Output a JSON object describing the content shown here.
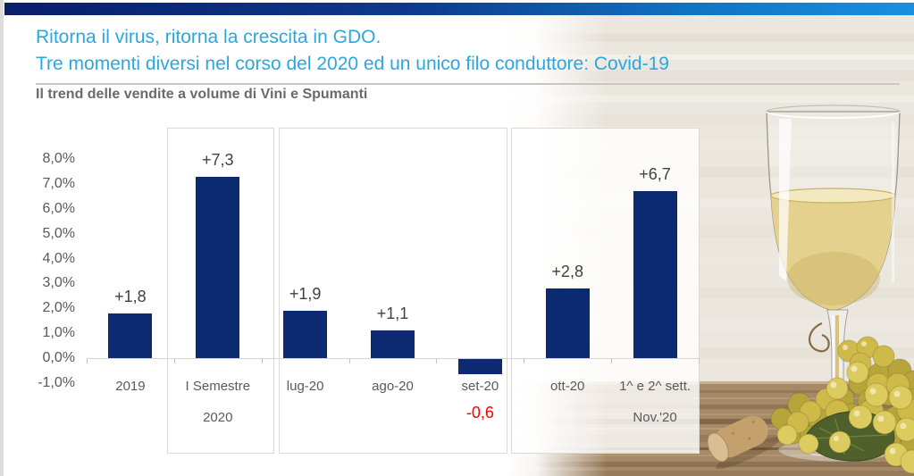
{
  "slide": {
    "title_line1": "Ritorna il virus, ritorna la crescita in GDO.",
    "title_line2": "Tre momenti diversi nel corso del 2020 ed un unico filo conduttore: Covid-19",
    "subtitle": "Il trend delle vendite a volume di Vini e Spumanti",
    "accent_colors": {
      "topbar_left": "#0a1e6b",
      "topbar_right": "#1a8fe0",
      "title_blue": "#2ba7e0",
      "subtitle_gray": "#6a6a6a"
    }
  },
  "photo": {
    "subject": "glass of white wine with grapes, vine leaf and cork on a wooden table"
  },
  "chart_data": {
    "type": "bar",
    "title": "Il trend delle vendite a volume di Vini e Spumanti",
    "categories": [
      "2019",
      "I Semestre 2020",
      "lug-20",
      "ago-20",
      "set-20",
      "ott-20",
      "1^ e 2^ sett. Nov.'20"
    ],
    "category_lines": [
      [
        "2019"
      ],
      [
        "I Semestre",
        "2020"
      ],
      [
        "lug-20"
      ],
      [
        "ago-20"
      ],
      [
        "set-20"
      ],
      [
        "ott-20"
      ],
      [
        "1^ e 2^ sett.",
        "Nov.'20"
      ]
    ],
    "values": [
      1.8,
      7.3,
      1.9,
      1.1,
      -0.6,
      2.8,
      6.7
    ],
    "data_labels": [
      "+1,8",
      "+7,3",
      "+1,9",
      "+1,1",
      "-0,6",
      "+2,8",
      "+6,7"
    ],
    "unit": "%",
    "ylim": [
      -1.0,
      8.0
    ],
    "yticks": [
      {
        "value": 8,
        "label": "8,0%"
      },
      {
        "value": 7,
        "label": "7,0%"
      },
      {
        "value": 6,
        "label": "6,0%"
      },
      {
        "value": 5,
        "label": "5,0%"
      },
      {
        "value": 4,
        "label": "4,0%"
      },
      {
        "value": 3,
        "label": "3,0%"
      },
      {
        "value": 2,
        "label": "2,0%"
      },
      {
        "value": 1,
        "label": "1,0%"
      },
      {
        "value": 0,
        "label": "0,0%"
      },
      {
        "value": -1,
        "label": "-1,0%"
      }
    ],
    "grid": false,
    "legend": false,
    "bar_color": "#0b2a72",
    "value_label_color": "#404040",
    "negative_label_color": "#ff0000",
    "axis_label_color": "#595959",
    "group_boxes": [
      {
        "categories": [
          "I Semestre 2020"
        ]
      },
      {
        "categories": [
          "lug-20",
          "ago-20",
          "set-20"
        ]
      },
      {
        "categories": [
          "ott-20",
          "1^ e 2^ sett. Nov.'20"
        ]
      }
    ]
  }
}
